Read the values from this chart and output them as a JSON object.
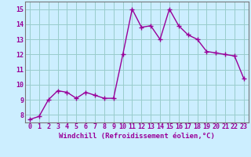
{
  "x": [
    0,
    1,
    2,
    3,
    4,
    5,
    6,
    7,
    8,
    9,
    10,
    11,
    12,
    13,
    14,
    15,
    16,
    17,
    18,
    19,
    20,
    21,
    22,
    23
  ],
  "y": [
    7.7,
    7.9,
    9.0,
    9.6,
    9.5,
    9.1,
    9.5,
    9.3,
    9.1,
    9.1,
    12.0,
    15.0,
    13.8,
    13.9,
    13.0,
    15.0,
    13.9,
    13.3,
    13.0,
    12.2,
    12.1,
    12.0,
    11.9,
    10.4
  ],
  "line_color": "#990099",
  "marker": "+",
  "marker_size": 4,
  "linewidth": 1.0,
  "markeredgewidth": 1.0,
  "bg_color": "#cceeff",
  "grid_color": "#99cccc",
  "xlabel": "Windchill (Refroidissement éolien,°C)",
  "xlabel_color": "#990099",
  "xlabel_fontsize": 6.5,
  "tick_color": "#990099",
  "tick_fontsize": 6.0,
  "ylim": [
    7.5,
    15.5
  ],
  "xlim": [
    -0.5,
    23.5
  ],
  "yticks": [
    8,
    9,
    10,
    11,
    12,
    13,
    14,
    15
  ],
  "xticks": [
    0,
    1,
    2,
    3,
    4,
    5,
    6,
    7,
    8,
    9,
    10,
    11,
    12,
    13,
    14,
    15,
    16,
    17,
    18,
    19,
    20,
    21,
    22,
    23
  ]
}
